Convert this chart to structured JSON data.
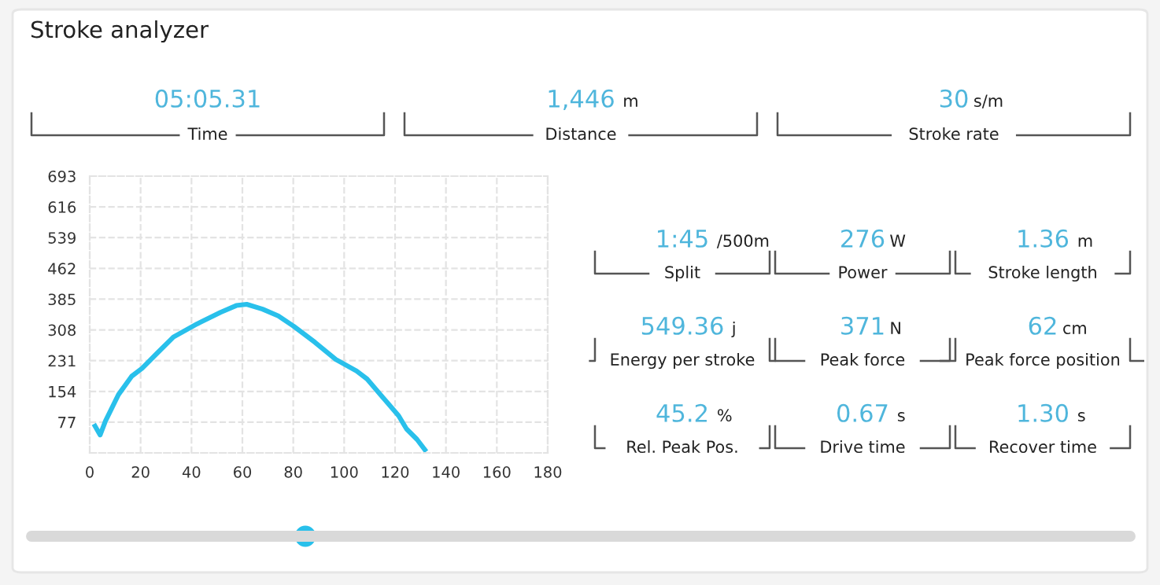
{
  "chart_data": [
    {
      "type": "other",
      "title": "Stroke analyzer",
      "categories": [
        "Time",
        "Distance",
        "Stroke rate"
      ],
      "value_labels": [
        "05:05.31",
        "1,446 m",
        "30 s/m"
      ],
      "color": "#4fb6dc"
    },
    {
      "type": "line",
      "x": [
        2.1,
        4.1,
        6.2,
        11.3,
        16.5,
        20.6,
        26.7,
        32.9,
        42.2,
        51.4,
        57.6,
        61.7,
        67.9,
        74.1,
        80.2,
        88.5,
        96.7,
        104.9,
        109.0,
        115.2,
        121.4,
        124.5,
        128.6,
        131.7
      ],
      "series": [
        {
          "color": "#29c0eb",
          "values": [
            67,
            45,
            80,
            146,
            192,
            212,
            251,
            290,
            323,
            352,
            369,
            372,
            360,
            343,
            317,
            277,
            234,
            205,
            185,
            139,
            93,
            60,
            34,
            8
          ]
        }
      ],
      "xlim": [
        0,
        180
      ],
      "xticks": [
        0,
        20,
        40,
        60,
        80,
        100,
        120,
        140,
        160,
        180
      ],
      "ylim": [
        0,
        693
      ],
      "yticks": [
        77,
        154,
        231,
        308,
        385,
        462,
        539,
        616,
        693
      ],
      "grid": true,
      "line_style": "solid",
      "marker": "none"
    },
    {
      "type": "other",
      "categories": [
        "Split",
        "Power",
        "Stroke length",
        "Energy per stroke",
        "Peak force",
        "Peak force position",
        "Rel. Peak Pos.",
        "Drive time",
        "Recover time"
      ],
      "value_labels": [
        "1:45 /500m",
        "276 W",
        "1.36 m",
        "549.36 j",
        "371 N",
        "62 cm",
        "45.2 %",
        "0.67 s",
        "1.30 s"
      ],
      "color": "#4fb6dc"
    }
  ]
}
